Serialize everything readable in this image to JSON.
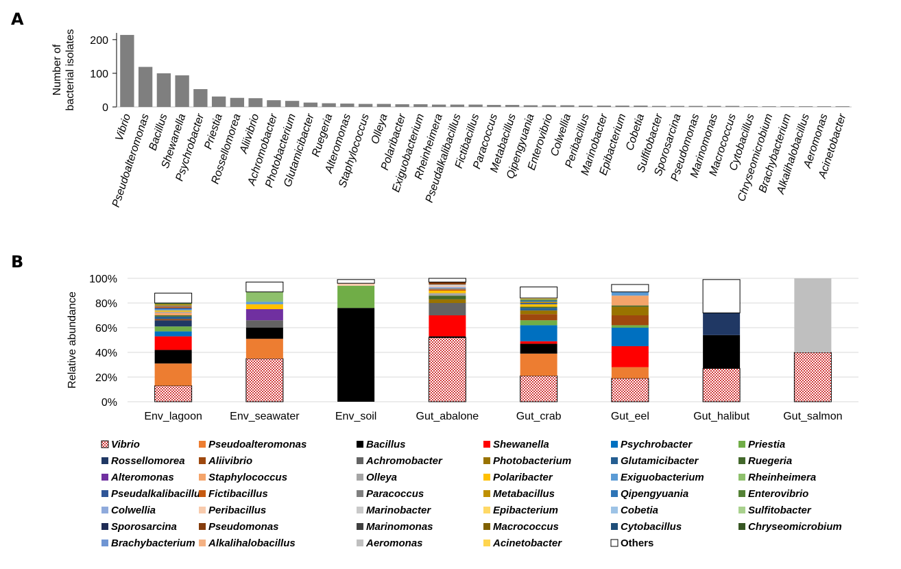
{
  "panelA": {
    "label": "A",
    "chart_data": {
      "type": "bar",
      "ylabel": [
        "Number of",
        "bacterial isolates"
      ],
      "yticks": [
        0,
        100,
        200
      ],
      "ylim": [
        0,
        220
      ],
      "color": "#7f7f7f",
      "categories": [
        "Vibrio",
        "Pseudoalteromonas",
        "Bacillus",
        "Shewanella",
        "Psychrobacter",
        "Priestia",
        "Rossellomorea",
        "Aliivibrio",
        "Achromobacter",
        "Photobacterium",
        "Glutamicibacter",
        "Ruegeria",
        "Alteromonas",
        "Staphylococcus",
        "Olleya",
        "Polaribacter",
        "Exiguobacterium",
        "Rheinheimera",
        "Pseudalkalibacillus",
        "Fictibacillus",
        "Paracoccus",
        "Metabacillus",
        "Qipengyuania",
        "Enterovibrio",
        "Colwellia",
        "Peribacillus",
        "Marinobacter",
        "Epibacterium",
        "Cobetia",
        "Sulfitobacter",
        "Sporosarcina",
        "Pseudomonas",
        "Marinomonas",
        "Macrococcus",
        "Cytobacillus",
        "Chryseomicrobium",
        "Brachybacterium",
        "Alkalihalobacillus",
        "Aeromonas",
        "Acinetobacter"
      ],
      "values": [
        214,
        119,
        100,
        94,
        53,
        31,
        27,
        26,
        20,
        18,
        13,
        11,
        10,
        9,
        9,
        8,
        8,
        7,
        7,
        7,
        6,
        6,
        5,
        5,
        5,
        4,
        4,
        4,
        4,
        3,
        3,
        3,
        3,
        3,
        2,
        2,
        2,
        2,
        2,
        2
      ]
    }
  },
  "panelB": {
    "label": "B",
    "chart_data": {
      "type": "bar",
      "stacked": true,
      "ylabel": "Relative abundance",
      "yticks": [
        "0%",
        "20%",
        "40%",
        "60%",
        "80%",
        "100%"
      ],
      "ylim": [
        0,
        100
      ],
      "grid": true,
      "legend_position": "bottom",
      "categories": [
        "Env_lagoon",
        "Env_seawater",
        "Env_soil",
        "Gut_abalone",
        "Gut_crab",
        "Gut_eel",
        "Gut_halibut",
        "Gut_salmon"
      ],
      "series": [
        {
          "name": "Vibrio",
          "color": "#e26b6b",
          "pattern": true,
          "values": [
            13,
            35,
            0,
            52,
            21,
            19,
            27,
            40
          ]
        },
        {
          "name": "Pseudoalteromonas",
          "color": "#ed7d31",
          "values": [
            18,
            16,
            0,
            0,
            18,
            9,
            0,
            0
          ]
        },
        {
          "name": "Bacillus",
          "color": "#000000",
          "values": [
            11,
            9,
            76,
            1,
            8,
            0,
            27,
            0
          ]
        },
        {
          "name": "Shewanella",
          "color": "#ff0000",
          "values": [
            11,
            0,
            0,
            17,
            2,
            17,
            0,
            0
          ]
        },
        {
          "name": "Psychrobacter",
          "color": "#0070c0",
          "values": [
            4,
            0,
            0,
            0,
            13,
            15,
            0,
            0
          ]
        },
        {
          "name": "Priestia",
          "color": "#70ad47",
          "values": [
            4,
            0,
            18,
            0,
            4,
            2,
            0,
            0
          ]
        },
        {
          "name": "Rossellomorea",
          "color": "#203864",
          "values": [
            5,
            0,
            0,
            0,
            0,
            0,
            18,
            0
          ]
        },
        {
          "name": "Aliivibrio",
          "color": "#9e480e",
          "values": [
            1,
            0,
            0,
            0,
            5,
            8,
            0,
            0
          ]
        },
        {
          "name": "Achromobacter",
          "color": "#636363",
          "values": [
            0,
            6,
            0,
            10,
            0,
            0,
            0,
            0
          ]
        },
        {
          "name": "Photobacterium",
          "color": "#997300",
          "values": [
            0,
            0,
            0,
            3,
            3,
            7,
            0,
            0
          ]
        },
        {
          "name": "Glutamicibacter",
          "color": "#255e91",
          "values": [
            2,
            0,
            0,
            0,
            2,
            0,
            0,
            0
          ]
        },
        {
          "name": "Ruegeria",
          "color": "#43682b",
          "values": [
            1,
            0,
            0,
            3,
            1,
            1,
            0,
            0
          ]
        },
        {
          "name": "Alteromonas",
          "color": "#7030a0",
          "values": [
            0,
            9,
            0,
            0,
            0,
            0,
            0,
            0
          ]
        },
        {
          "name": "Staphylococcus",
          "color": "#f4a46a",
          "values": [
            2,
            0,
            0,
            0,
            0,
            8,
            0,
            0
          ]
        },
        {
          "name": "Olleya",
          "color": "#a5a5a5",
          "values": [
            1,
            0,
            0,
            2,
            0,
            0,
            0,
            0
          ]
        },
        {
          "name": "Polaribacter",
          "color": "#ffc000",
          "values": [
            1,
            4,
            0,
            2,
            2,
            0,
            0,
            0
          ]
        },
        {
          "name": "Exiguobacterium",
          "color": "#5b9bd5",
          "values": [
            1,
            2,
            0,
            0,
            0,
            3,
            0,
            0
          ]
        },
        {
          "name": "Rheinheimera",
          "color": "#8ec06c",
          "values": [
            0,
            8,
            0,
            0,
            0,
            0,
            0,
            0
          ]
        },
        {
          "name": "Pseudalkalibacillus",
          "color": "#2f5597",
          "values": [
            1,
            0,
            0,
            0,
            1,
            0,
            0,
            0
          ]
        },
        {
          "name": "Fictibacillus",
          "color": "#c55a11",
          "values": [
            1,
            0,
            0,
            1,
            0,
            0,
            0,
            0
          ]
        },
        {
          "name": "Paracoccus",
          "color": "#7f7f7f",
          "values": [
            1,
            0,
            0,
            1,
            0,
            0,
            0,
            0
          ]
        },
        {
          "name": "Metabacillus",
          "color": "#bf9000",
          "values": [
            1,
            0,
            0,
            0,
            1,
            0,
            0,
            0
          ]
        },
        {
          "name": "Qipengyuania",
          "color": "#2e75b6",
          "values": [
            0,
            0,
            0,
            0,
            1,
            0,
            0,
            0
          ]
        },
        {
          "name": "Enterovibrio",
          "color": "#548235",
          "values": [
            1,
            0,
            0,
            0,
            1,
            0,
            0,
            0
          ]
        },
        {
          "name": "Colwellia",
          "color": "#8faadc",
          "values": [
            0,
            0,
            0,
            1,
            0,
            0,
            0,
            0
          ]
        },
        {
          "name": "Peribacillus",
          "color": "#f8cbad",
          "values": [
            0,
            0,
            2,
            1,
            0,
            0,
            0,
            0
          ]
        },
        {
          "name": "Marinobacter",
          "color": "#c9c9c9",
          "values": [
            0,
            0,
            0,
            1,
            0,
            0,
            0,
            0
          ]
        },
        {
          "name": "Epibacterium",
          "color": "#ffd966",
          "values": [
            0,
            0,
            0,
            0,
            1,
            0,
            0,
            0
          ]
        },
        {
          "name": "Cobetia",
          "color": "#9dc3e6",
          "values": [
            0,
            0,
            0,
            0,
            0,
            0,
            0,
            0
          ]
        },
        {
          "name": "Sulfitobacter",
          "color": "#a9d18e",
          "values": [
            0,
            0,
            0,
            0,
            0,
            0,
            0,
            0
          ]
        },
        {
          "name": "Sporosarcina",
          "color": "#1f2c55",
          "values": [
            0,
            0,
            0,
            0,
            0,
            0,
            0,
            0
          ]
        },
        {
          "name": "Pseudomonas",
          "color": "#843c0c",
          "values": [
            0,
            0,
            0,
            2,
            0,
            0,
            0,
            0
          ]
        },
        {
          "name": "Marinomonas",
          "color": "#404040",
          "values": [
            0,
            0,
            0,
            0,
            0,
            0,
            0,
            0
          ]
        },
        {
          "name": "Macrococcus",
          "color": "#7f6000",
          "values": [
            0,
            0,
            0,
            0,
            0,
            0,
            0,
            0
          ]
        },
        {
          "name": "Cytobacillus",
          "color": "#1f4e79",
          "values": [
            0,
            0,
            0,
            0,
            0,
            0,
            0,
            0
          ]
        },
        {
          "name": "Chryseomicrobium",
          "color": "#375623",
          "values": [
            0,
            0,
            0,
            0,
            0,
            0,
            0,
            0
          ]
        },
        {
          "name": "Brachybacterium",
          "color": "#6f95d3",
          "values": [
            0,
            0,
            0,
            0,
            0,
            0,
            0,
            0
          ]
        },
        {
          "name": "Alkalihalobacillus",
          "color": "#f4b183",
          "values": [
            0,
            0,
            0,
            0,
            0,
            0,
            0,
            0
          ]
        },
        {
          "name": "Aeromonas",
          "color": "#bfbfbf",
          "values": [
            0,
            0,
            0,
            0,
            0,
            0,
            0,
            60
          ]
        },
        {
          "name": "Acinetobacter",
          "color": "#ffd54f",
          "values": [
            0,
            0,
            0,
            0,
            0,
            0,
            0,
            0
          ]
        },
        {
          "name": "Others",
          "color": "#ffffff",
          "values": [
            8,
            8,
            3,
            3,
            9,
            6,
            27,
            0
          ]
        }
      ]
    }
  }
}
